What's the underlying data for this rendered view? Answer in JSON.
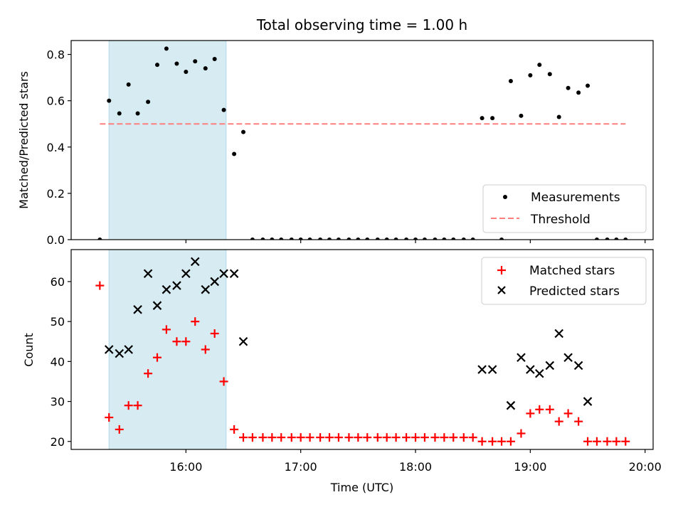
{
  "chart_data": [
    {
      "type": "scatter",
      "title": "Total observing time = 1.00 h",
      "xlabel": "",
      "ylabel": "Matched/Predicted stars",
      "xlim": [
        15.0,
        20.07
      ],
      "ylim": [
        0.0,
        0.86
      ],
      "yticks": [
        0.0,
        0.2,
        0.4,
        0.6,
        0.8
      ],
      "ytick_labels": [
        "0.0",
        "0.2",
        "0.4",
        "0.6",
        "0.8"
      ],
      "shaded_span": [
        15.33,
        16.35
      ],
      "threshold": {
        "value": 0.5,
        "x_range": [
          15.25,
          19.83
        ],
        "label": "Threshold",
        "color": "#ff7f7f"
      },
      "legend": {
        "position": "lower-right",
        "entries": [
          "Measurements",
          "Threshold"
        ]
      },
      "series": [
        {
          "name": "Measurements",
          "color": "#000000",
          "x": [
            15.25,
            15.33,
            15.42,
            15.5,
            15.58,
            15.67,
            15.75,
            15.83,
            15.92,
            16.0,
            16.08,
            16.17,
            16.25,
            16.33,
            16.42,
            16.5,
            16.58,
            16.67,
            16.75,
            16.83,
            16.92,
            17.0,
            17.08,
            17.17,
            17.25,
            17.33,
            17.42,
            17.5,
            17.58,
            17.67,
            17.75,
            17.83,
            17.92,
            18.0,
            18.08,
            18.17,
            18.25,
            18.33,
            18.42,
            18.5,
            18.58,
            18.67,
            18.75,
            18.83,
            18.92,
            19.0,
            19.08,
            19.17,
            19.25,
            19.33,
            19.42,
            19.5,
            19.58,
            19.67,
            19.75,
            19.83
          ],
          "y": [
            0.0,
            0.6,
            0.545,
            0.67,
            0.545,
            0.595,
            0.755,
            0.825,
            0.76,
            0.725,
            0.77,
            0.74,
            0.78,
            0.56,
            0.37,
            0.465,
            0.0,
            0.0,
            0.0,
            0.0,
            0.0,
            0.0,
            0.0,
            0.0,
            0.0,
            0.0,
            0.0,
            0.0,
            0.0,
            0.0,
            0.0,
            0.0,
            0.0,
            0.0,
            0.0,
            0.0,
            0.0,
            0.0,
            0.0,
            0.0,
            0.525,
            0.525,
            0.0,
            0.685,
            0.535,
            0.71,
            0.755,
            0.715,
            0.53,
            0.655,
            0.635,
            0.665,
            0.0,
            0.0,
            0.0,
            0.0
          ]
        }
      ]
    },
    {
      "type": "scatter",
      "title": "",
      "xlabel": "Time (UTC)",
      "ylabel": "Count",
      "xlim": [
        15.0,
        20.07
      ],
      "ylim": [
        18,
        68
      ],
      "yticks": [
        20,
        30,
        40,
        50,
        60
      ],
      "ytick_labels": [
        "20",
        "30",
        "40",
        "50",
        "60"
      ],
      "xticks": [
        16,
        17,
        18,
        19,
        20
      ],
      "xtick_labels": [
        "16:00",
        "17:00",
        "18:00",
        "19:00",
        "20:00"
      ],
      "shaded_span": [
        15.33,
        16.35
      ],
      "legend": {
        "position": "top-right",
        "entries": [
          "Matched stars",
          "Predicted stars"
        ]
      },
      "series": [
        {
          "name": "Matched stars",
          "marker": "+",
          "color": "#ff0000",
          "x": [
            15.25,
            15.33,
            15.42,
            15.5,
            15.58,
            15.67,
            15.75,
            15.83,
            15.92,
            16.0,
            16.08,
            16.17,
            16.25,
            16.33,
            16.42,
            16.5,
            16.58,
            16.67,
            16.75,
            16.83,
            16.92,
            17.0,
            17.08,
            17.17,
            17.25,
            17.33,
            17.42,
            17.5,
            17.58,
            17.67,
            17.75,
            17.83,
            17.92,
            18.0,
            18.08,
            18.17,
            18.25,
            18.33,
            18.42,
            18.5,
            18.58,
            18.67,
            18.75,
            18.83,
            18.92,
            19.0,
            19.08,
            19.17,
            19.25,
            19.33,
            19.42,
            19.5,
            19.58,
            19.67,
            19.75,
            19.83
          ],
          "y": [
            59,
            26,
            23,
            29,
            29,
            37,
            41,
            48,
            45,
            45,
            50,
            43,
            47,
            35,
            23,
            21,
            21,
            21,
            21,
            21,
            21,
            21,
            21,
            21,
            21,
            21,
            21,
            21,
            21,
            21,
            21,
            21,
            21,
            21,
            21,
            21,
            21,
            21,
            21,
            21,
            20,
            20,
            20,
            20,
            22,
            27,
            28,
            28,
            25,
            27,
            25,
            20,
            20,
            20,
            20,
            20
          ]
        },
        {
          "name": "Predicted stars",
          "marker": "x",
          "color": "#000000",
          "x": [
            15.33,
            15.42,
            15.5,
            15.58,
            15.67,
            15.75,
            15.83,
            15.92,
            16.0,
            16.08,
            16.17,
            16.25,
            16.33,
            16.42,
            16.5,
            18.58,
            18.67,
            18.83,
            18.92,
            19.0,
            19.08,
            19.17,
            19.25,
            19.33,
            19.42,
            19.5
          ],
          "y": [
            43,
            42,
            43,
            53,
            62,
            54,
            58,
            59,
            62,
            65,
            58,
            60,
            62,
            62,
            45,
            38,
            38,
            29,
            41,
            38,
            37,
            39,
            47,
            41,
            39,
            30
          ]
        }
      ]
    }
  ]
}
